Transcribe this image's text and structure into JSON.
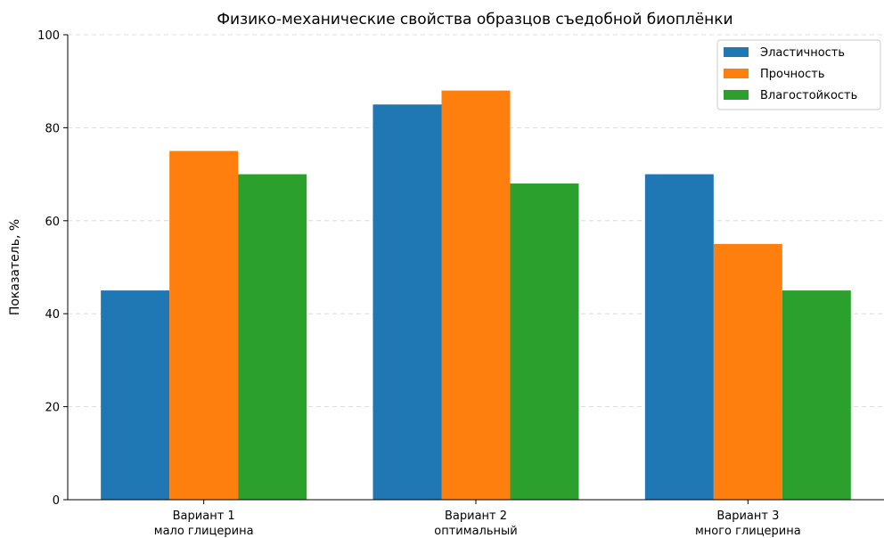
{
  "chart_data": {
    "type": "bar",
    "title": "Физико-механические свойства образцов съедобной биоплёнки",
    "xlabel": "",
    "ylabel": "Показатель, %",
    "ylim": [
      0,
      100
    ],
    "yticks": [
      "0",
      "20",
      "40",
      "60",
      "80",
      "100"
    ],
    "grid": "horizontal-dashed",
    "legend_position": "top-right",
    "categories": [
      [
        "Вариант 1",
        "мало глицерина"
      ],
      [
        "Вариант 2",
        "оптимальный"
      ],
      [
        "Вариант 3",
        "много глицерина"
      ]
    ],
    "series": [
      {
        "name": "Эластичность",
        "color": "#1f77b4",
        "values": [
          45,
          85,
          70
        ]
      },
      {
        "name": "Прочность",
        "color": "#ff7f0e",
        "values": [
          75,
          88,
          55
        ]
      },
      {
        "name": "Влагостойкость",
        "color": "#2ca02c",
        "values": [
          70,
          68,
          45
        ]
      }
    ]
  }
}
